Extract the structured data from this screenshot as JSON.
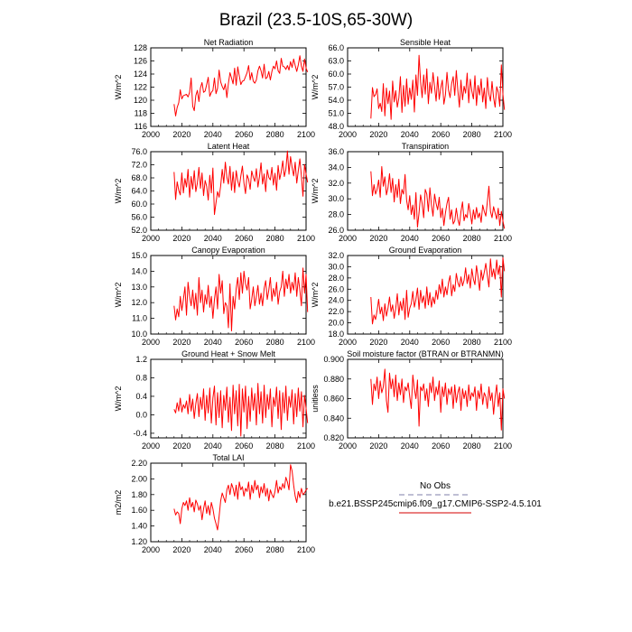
{
  "title": "Brazil (23.5-10S,65-30W)",
  "legend": {
    "obs_label": "No Obs",
    "model_label": "b.e21.BSSP245cmip6.f09_g17.CMIP6-SSP2-4.5.101",
    "obs_color": "#9999bb",
    "model_color": "#dd3333"
  },
  "colors": {
    "series": "#ff0000",
    "axis": "#000000"
  },
  "chart_data": [
    {
      "id": "net-radiation",
      "type": "line",
      "title": "Net Radiation",
      "ylabel": "W/m^2",
      "xlim": [
        2000,
        2100
      ],
      "xticks": [
        2000,
        2020,
        2040,
        2060,
        2080,
        2100
      ],
      "ylim": [
        116,
        128
      ],
      "yticks": [
        116,
        118,
        120,
        122,
        124,
        126,
        128
      ],
      "ytick_labels": [
        "116",
        "118",
        "120",
        "122",
        "124",
        "126",
        "128"
      ],
      "start_year": 2015,
      "values": [
        119.4,
        117.6,
        118.9,
        119.6,
        121.6,
        120.2,
        120.7,
        120.8,
        120.9,
        120.5,
        121.2,
        123.4,
        119.1,
        118.4,
        120.7,
        121.5,
        119.8,
        121.9,
        122.7,
        121.2,
        121.4,
        122.4,
        123.5,
        120.6,
        121.2,
        121.5,
        123.4,
        121.0,
        121.8,
        124.6,
        122.8,
        122.1,
        121.6,
        122.5,
        120.4,
        122.6,
        124.2,
        123.4,
        122.5,
        124.9,
        122.3,
        125.1,
        123.7,
        122.4,
        122.9,
        123.0,
        123.6,
        124.2,
        125.3,
        123.1,
        124.2,
        122.9,
        122.6,
        123.1,
        124.5,
        125.2,
        124.5,
        123.4,
        125.5,
        123.3,
        123.5,
        124.4,
        123.1,
        124.4,
        125.2,
        124.8,
        126.0,
        124.5,
        124.1,
        126.4,
        125.2,
        125.1,
        124.7,
        125.3,
        124.6,
        125.9,
        125.0,
        126.3,
        125.3,
        124.4,
        125.4,
        126.8,
        125.2,
        124.4,
        126.3,
        124.9,
        124.3
      ]
    },
    {
      "id": "sensible-heat",
      "type": "line",
      "title": "Sensible Heat",
      "ylabel": "W/m^2",
      "xlim": [
        2000,
        2100
      ],
      "xticks": [
        2000,
        2020,
        2040,
        2060,
        2080,
        2100
      ],
      "ylim": [
        48,
        66
      ],
      "yticks": [
        48,
        51,
        54,
        57,
        60,
        63,
        66
      ],
      "ytick_labels": [
        "48.0",
        "51.0",
        "54.0",
        "57.0",
        "60.0",
        "63.0",
        "66.0"
      ],
      "start_year": 2015,
      "values": [
        49.8,
        56.9,
        54.8,
        55.3,
        56.6,
        52.1,
        53.3,
        51.4,
        57.8,
        50.4,
        56.8,
        53.2,
        56.1,
        49.6,
        58.4,
        53.6,
        56.2,
        52.4,
        54.5,
        59.4,
        51.2,
        57.4,
        52.6,
        58.9,
        53.1,
        56.8,
        54.2,
        58.6,
        51.3,
        59.8,
        55.1,
        64.3,
        58.2,
        54.6,
        59.8,
        55.4,
        61.2,
        53.2,
        58.1,
        55.6,
        60.3,
        57.1,
        53.8,
        59.4,
        54.2,
        56.8,
        58.6,
        53.1,
        55.2,
        60.4,
        56.3,
        54.6,
        57.8,
        59.4,
        55.1,
        60.8,
        56.2,
        52.4,
        58.6,
        54.1,
        57.2,
        55.6,
        60.2,
        53.4,
        58.8,
        56.1,
        54.3,
        59.6,
        52.8,
        57.4,
        55.2,
        58.9,
        53.6,
        56.8,
        52.1,
        59.2,
        55.4,
        53.8,
        58.3,
        54.6,
        52.4,
        57.1,
        55.8,
        52.6,
        62.1,
        55.4,
        51.8
      ]
    },
    {
      "id": "latent-heat",
      "type": "line",
      "title": "Latent Heat",
      "ylabel": "W/m^2",
      "xlim": [
        2000,
        2100
      ],
      "xticks": [
        2000,
        2020,
        2040,
        2060,
        2080,
        2100
      ],
      "ylim": [
        52,
        76
      ],
      "yticks": [
        52,
        56,
        60,
        64,
        68,
        72,
        76
      ],
      "ytick_labels": [
        "52.0",
        "56.0",
        "60.0",
        "64.0",
        "68.0",
        "72.0",
        "76.0"
      ],
      "start_year": 2015,
      "values": [
        69.8,
        61.4,
        66.8,
        64.2,
        62.8,
        69.5,
        63.4,
        67.8,
        65.2,
        70.6,
        62.1,
        68.4,
        64.6,
        70.2,
        63.8,
        66.4,
        71.2,
        64.8,
        69.5,
        62.6,
        67.2,
        65.4,
        61.2,
        68.8,
        63.4,
        71.0,
        56.8,
        60.4,
        63.8,
        62.1,
        65.5,
        70.6,
        66.4,
        72.8,
        68.2,
        66.1,
        71.5,
        64.2,
        69.8,
        63.5,
        70.2,
        67.1,
        65.2,
        68.6,
        71.6,
        66.4,
        63.2,
        68.9,
        67.6,
        64.5,
        70.1,
        68.2,
        66.9,
        70.8,
        65.2,
        68.4,
        72.6,
        66.1,
        69.2,
        63.8,
        70.5,
        68.1,
        67.4,
        71.2,
        65.8,
        69.4,
        64.2,
        71.8,
        67.5,
        69.8,
        73.2,
        68.4,
        70.6,
        76.2,
        69.1,
        74.5,
        71.2,
        68.6,
        72.8,
        66.4,
        70.2,
        73.8,
        68.5,
        62.4,
        72.1,
        69.2,
        66.6
      ]
    },
    {
      "id": "transpiration",
      "type": "line",
      "title": "Transpiration",
      "ylabel": "W/m^2",
      "xlim": [
        2000,
        2100
      ],
      "xticks": [
        2000,
        2020,
        2040,
        2060,
        2080,
        2100
      ],
      "ylim": [
        26,
        36
      ],
      "yticks": [
        26,
        28,
        30,
        32,
        34,
        36
      ],
      "ytick_labels": [
        "26.0",
        "28.0",
        "30.0",
        "32.0",
        "34.0",
        "36.0"
      ],
      "start_year": 2015,
      "values": [
        33.5,
        30.4,
        31.8,
        30.6,
        31.2,
        32.4,
        30.2,
        34.1,
        31.6,
        32.8,
        30.5,
        31.4,
        33.2,
        30.8,
        32.6,
        29.6,
        31.8,
        30.2,
        32.5,
        29.4,
        31.2,
        30.6,
        33.1,
        29.8,
        28.6,
        30.4,
        28.0,
        29.2,
        27.4,
        30.8,
        26.4,
        28.2,
        30.5,
        29.4,
        27.6,
        31.2,
        30.6,
        28.4,
        31.4,
        29.2,
        27.8,
        30.6,
        29.4,
        28.6,
        30.2,
        27.6,
        28.8,
        26.6,
        28.2,
        29.4,
        30.2,
        27.4,
        28.6,
        26.8,
        27.2,
        28.8,
        27.4,
        26.6,
        28.4,
        29.6,
        27.2,
        28.0,
        27.6,
        29.4,
        28.2,
        26.8,
        28.6,
        27.4,
        28.9,
        27.6,
        28.2,
        27.0,
        29.2,
        28.4,
        27.8,
        29.6,
        31.6,
        28.4,
        27.6,
        29.0,
        28.2,
        27.4,
        28.8,
        26.6,
        28.4,
        27.2,
        26.2
      ]
    },
    {
      "id": "canopy-evaporation",
      "type": "line",
      "title": "Canopy Evaporation",
      "ylabel": "W/m^2",
      "xlim": [
        2000,
        2100
      ],
      "xticks": [
        2000,
        2020,
        2040,
        2060,
        2080,
        2100
      ],
      "ylim": [
        10,
        15
      ],
      "yticks": [
        10,
        11,
        12,
        13,
        14,
        15
      ],
      "ytick_labels": [
        "10.0",
        "11.0",
        "12.0",
        "13.0",
        "14.0",
        "15.0"
      ],
      "start_year": 2015,
      "values": [
        11.8,
        10.9,
        11.6,
        11.1,
        12.4,
        11.5,
        12.2,
        13.0,
        11.2,
        13.3,
        12.4,
        11.8,
        12.8,
        11.6,
        12.6,
        11.2,
        13.6,
        12.0,
        12.8,
        11.4,
        12.5,
        11.9,
        13.1,
        11.7,
        12.4,
        11.0,
        12.2,
        13.0,
        11.6,
        13.8,
        12.6,
        13.4,
        11.3,
        12.0,
        11.8,
        10.4,
        13.2,
        10.2,
        12.4,
        11.6,
        12.9,
        13.6,
        12.2,
        13.9,
        12.6,
        14.0,
        13.2,
        12.8,
        13.6,
        11.6,
        12.2,
        13.0,
        11.8,
        12.4,
        13.1,
        11.9,
        12.6,
        11.8,
        12.9,
        13.4,
        12.2,
        12.8,
        13.6,
        12.1,
        12.9,
        12.4,
        13.3,
        11.9,
        12.7,
        13.0,
        14.0,
        12.4,
        13.5,
        12.9,
        13.8,
        12.6,
        13.3,
        12.8,
        13.9,
        12.4,
        13.6,
        12.8,
        11.8,
        14.2,
        12.6,
        13.8,
        11.4
      ]
    },
    {
      "id": "ground-evaporation",
      "type": "line",
      "title": "Ground Evaporation",
      "ylabel": "W/m^2",
      "xlim": [
        2000,
        2100
      ],
      "xticks": [
        2000,
        2020,
        2040,
        2060,
        2080,
        2100
      ],
      "ylim": [
        18,
        32
      ],
      "yticks": [
        18,
        20,
        22,
        24,
        26,
        28,
        30,
        32
      ],
      "ytick_labels": [
        "18.0",
        "20.0",
        "22.0",
        "24.0",
        "26.0",
        "28.0",
        "30.0",
        "32.0"
      ],
      "start_year": 2015,
      "values": [
        24.6,
        19.8,
        21.4,
        20.6,
        22.2,
        24.2,
        21.6,
        22.8,
        20.4,
        23.4,
        21.2,
        22.6,
        24.6,
        22.0,
        23.2,
        20.8,
        22.6,
        25.2,
        21.4,
        23.8,
        22.2,
        24.4,
        20.6,
        25.8,
        21.0,
        22.6,
        23.4,
        25.6,
        22.8,
        24.2,
        26.2,
        22.4,
        25.8,
        23.6,
        24.8,
        22.6,
        26.4,
        23.2,
        25.4,
        22.8,
        24.6,
        23.4,
        25.8,
        24.2,
        26.8,
        25.2,
        27.8,
        24.6,
        26.4,
        25.0,
        27.2,
        28.4,
        24.8,
        26.8,
        25.6,
        28.8,
        27.2,
        26.4,
        28.2,
        26.6,
        27.6,
        29.8,
        27.0,
        28.6,
        26.2,
        29.6,
        27.8,
        26.8,
        30.2,
        28.2,
        25.8,
        29.4,
        27.6,
        29.0,
        30.6,
        28.4,
        26.4,
        31.4,
        28.2,
        29.6,
        27.8,
        31.2,
        28.6,
        30.2,
        24.6,
        31.6,
        29.2
      ]
    },
    {
      "id": "ground-heat-snow-melt",
      "type": "line",
      "title": "Ground Heat + Snow Melt",
      "ylabel": "W/m^2",
      "xlim": [
        2000,
        2100
      ],
      "xticks": [
        2000,
        2020,
        2040,
        2060,
        2080,
        2100
      ],
      "ylim": [
        -0.5,
        1.2
      ],
      "yticks": [
        -0.4,
        0,
        0.4,
        0.8,
        1.2
      ],
      "ytick_labels": [
        "-0.4",
        "0.0",
        "0.4",
        "0.8",
        "1.2"
      ],
      "start_year": 2015,
      "values": [
        0.12,
        0.04,
        0.26,
        0.08,
        0.36,
        0.06,
        0.22,
        0.14,
        0.3,
        0.02,
        0.44,
        0.08,
        0.34,
        -0.08,
        0.24,
        0.46,
        -0.04,
        0.38,
        0.12,
        0.56,
        -0.12,
        0.42,
        0.04,
        0.58,
        -0.18,
        0.36,
        0.62,
        -0.22,
        0.48,
        -0.06,
        0.52,
        -0.28,
        0.42,
        0.1,
        0.6,
        -0.16,
        0.38,
        -0.34,
        0.64,
        0.02,
        0.52,
        -0.24,
        0.66,
        -0.46,
        0.56,
        0.06,
        0.62,
        -0.3,
        0.4,
        -0.14,
        0.58,
        0.1,
        0.46,
        -0.22,
        0.68,
        0.02,
        0.5,
        -0.18,
        0.64,
        -0.06,
        0.44,
        0.12,
        0.56,
        -0.26,
        0.38,
        0.18,
        0.6,
        -0.08,
        0.52,
        -0.32,
        0.48,
        0.04,
        0.62,
        -0.12,
        0.4,
        0.16,
        0.54,
        -0.2,
        0.46,
        -0.04,
        0.58,
        0.08,
        0.5,
        -0.26,
        0.42,
        0.14,
        -0.18
      ]
    },
    {
      "id": "soil-moisture-factor",
      "type": "line",
      "title": "Soil moisture factor (BTRAN or BTRANMN)",
      "ylabel": "unitless",
      "xlim": [
        2000,
        2100
      ],
      "xticks": [
        2000,
        2020,
        2040,
        2060,
        2080,
        2100
      ],
      "ylim": [
        0.82,
        0.9
      ],
      "yticks": [
        0.82,
        0.84,
        0.86,
        0.88,
        0.9
      ],
      "ytick_labels": [
        "0.820",
        "0.840",
        "0.860",
        "0.880",
        "0.900"
      ],
      "start_year": 2015,
      "values": [
        0.88,
        0.854,
        0.875,
        0.868,
        0.882,
        0.86,
        0.878,
        0.866,
        0.872,
        0.89,
        0.858,
        0.846,
        0.886,
        0.87,
        0.88,
        0.862,
        0.884,
        0.858,
        0.876,
        0.864,
        0.88,
        0.856,
        0.872,
        0.868,
        0.876,
        0.862,
        0.85,
        0.884,
        0.87,
        0.86,
        0.879,
        0.832,
        0.872,
        0.868,
        0.875,
        0.858,
        0.87,
        0.852,
        0.876,
        0.866,
        0.882,
        0.858,
        0.872,
        0.864,
        0.878,
        0.846,
        0.872,
        0.862,
        0.876,
        0.854,
        0.87,
        0.864,
        0.872,
        0.85,
        0.874,
        0.856,
        0.866,
        0.872,
        0.848,
        0.87,
        0.86,
        0.868,
        0.852,
        0.874,
        0.858,
        0.866,
        0.862,
        0.872,
        0.848,
        0.868,
        0.86,
        0.875,
        0.854,
        0.866,
        0.862,
        0.85,
        0.872,
        0.858,
        0.866,
        0.844,
        0.862,
        0.874,
        0.852,
        0.866,
        0.828,
        0.87,
        0.86
      ]
    },
    {
      "id": "total-lai",
      "type": "line",
      "title": "Total LAI",
      "ylabel": "m2/m2",
      "xlim": [
        2000,
        2100
      ],
      "xticks": [
        2000,
        2020,
        2040,
        2060,
        2080,
        2100
      ],
      "ylim": [
        1.2,
        2.2
      ],
      "yticks": [
        1.2,
        1.4,
        1.6,
        1.8,
        2.0,
        2.2
      ],
      "ytick_labels": [
        "1.20",
        "1.40",
        "1.60",
        "1.80",
        "2.00",
        "2.20"
      ],
      "start_year": 2015,
      "values": [
        1.62,
        1.54,
        1.58,
        1.56,
        1.43,
        1.62,
        1.7,
        1.66,
        1.72,
        1.6,
        1.76,
        1.64,
        1.7,
        1.58,
        1.73,
        1.68,
        1.6,
        1.66,
        1.48,
        1.62,
        1.72,
        1.56,
        1.66,
        1.54,
        1.7,
        1.62,
        1.5,
        1.43,
        1.35,
        1.52,
        1.72,
        1.82,
        1.76,
        1.7,
        1.86,
        1.92,
        1.8,
        1.94,
        1.88,
        1.78,
        1.92,
        1.74,
        1.96,
        1.86,
        1.9,
        1.78,
        1.88,
        1.84,
        1.96,
        1.74,
        1.92,
        1.82,
        1.98,
        1.86,
        1.92,
        1.76,
        1.9,
        1.82,
        1.94,
        1.78,
        1.88,
        1.72,
        1.86,
        1.8,
        1.76,
        1.84,
        1.98,
        1.82,
        1.9,
        1.86,
        1.94,
        1.88,
        2.02,
        1.96,
        1.86,
        2.18,
        2.1,
        1.92,
        1.78,
        1.7,
        1.84,
        1.76,
        1.88,
        1.8,
        1.82,
        1.86,
        1.88
      ]
    }
  ]
}
